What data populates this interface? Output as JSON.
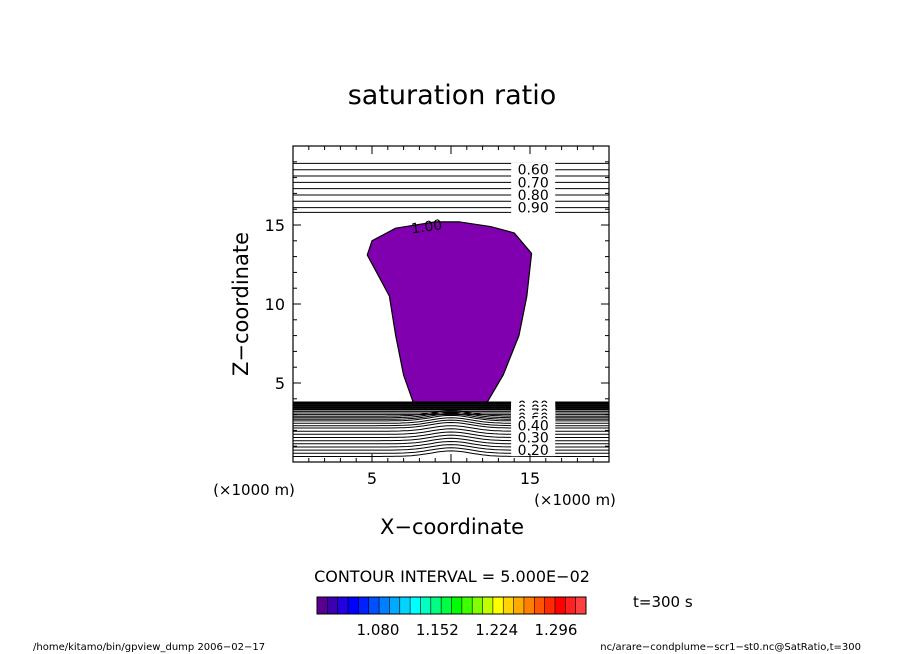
{
  "chart_data": {
    "type": "contour",
    "title": "saturation ratio",
    "xlabel": "X−coordinate",
    "ylabel": "Z−coordinate",
    "xlim": [
      0,
      20
    ],
    "ylim": [
      0,
      20
    ],
    "x_ticks": [
      5,
      10,
      15
    ],
    "x_tick_labels": [
      "5",
      "10",
      "15"
    ],
    "y_ticks": [
      5,
      10,
      15
    ],
    "y_tick_labels": [
      "5",
      "10",
      "15"
    ],
    "x_unit_label": "(×1000 m)",
    "y_unit_label": "(×1000 m)",
    "contour_interval_text": "CONTOUR INTERVAL = 5.000E−02",
    "upper_contour_levels": [
      {
        "z": 18.5,
        "label": "0.60"
      },
      {
        "z": 17.7,
        "label": "0.70"
      },
      {
        "z": 16.9,
        "label": "0.80"
      },
      {
        "z": 16.1,
        "label": "0.90"
      }
    ],
    "upper_unlabeled_lines_z": [
      18.9,
      18.1,
      17.3,
      16.5,
      15.8
    ],
    "shaded_region_label": "1.00",
    "shaded_region_outline": [
      [
        7.6,
        3.8
      ],
      [
        7.0,
        5.5
      ],
      [
        6.5,
        8.0
      ],
      [
        6.1,
        10.5
      ],
      [
        4.7,
        13.1
      ],
      [
        5.0,
        14.0
      ],
      [
        6.5,
        14.8
      ],
      [
        9.0,
        15.2
      ],
      [
        10.5,
        15.2
      ],
      [
        12.5,
        14.9
      ],
      [
        14.0,
        14.5
      ],
      [
        15.1,
        13.2
      ],
      [
        14.8,
        10.5
      ],
      [
        14.3,
        8.0
      ],
      [
        13.3,
        5.5
      ],
      [
        12.3,
        3.8
      ]
    ],
    "lower_contour_labels": [
      {
        "z": 3.55,
        "label": "0.00"
      },
      {
        "z": 3.3,
        "label": "0.80"
      },
      {
        "z": 3.05,
        "label": "0.70"
      },
      {
        "z": 2.8,
        "label": "0.60"
      },
      {
        "z": 2.55,
        "label": "0.50"
      },
      {
        "z": 2.3,
        "label": "0.40"
      },
      {
        "z": 1.55,
        "label": "0.30"
      },
      {
        "z": 0.75,
        "label": "0.20"
      }
    ],
    "lower_contour_lines_z": [
      3.8,
      3.75,
      3.7,
      3.65,
      3.6,
      3.55,
      3.5,
      3.45,
      3.4,
      3.35,
      3.3,
      3.2,
      3.1,
      3.0,
      2.9,
      2.8,
      2.7,
      2.6,
      2.45,
      2.3,
      2.15,
      1.95,
      1.75,
      1.55,
      1.35,
      1.15,
      0.95,
      0.75,
      0.55,
      0.35
    ],
    "colorbar": {
      "tick_labels": [
        "1.080",
        "1.152",
        "1.224",
        "1.296"
      ],
      "colors": [
        "#5a0090",
        "#3c00b4",
        "#2200e0",
        "#0000ff",
        "#0020ff",
        "#0050ff",
        "#0080ff",
        "#00aaff",
        "#00d4ff",
        "#00ffff",
        "#00ffc0",
        "#00ff80",
        "#00ff40",
        "#00ff00",
        "#40ff00",
        "#80ff00",
        "#c0ff00",
        "#ffff00",
        "#ffd400",
        "#ffaa00",
        "#ff8000",
        "#ff5500",
        "#ff2a00",
        "#ff0000",
        "#ff2020",
        "#ff4040"
      ],
      "fill_color": "#8000b0"
    },
    "time_label": "t=300 s"
  },
  "footer": {
    "left": "/home/kitamo/bin/gpview_dump  2006−02−17",
    "right": "nc/arare−condplume−scr1−st0.nc@SatRatio,t=300"
  }
}
